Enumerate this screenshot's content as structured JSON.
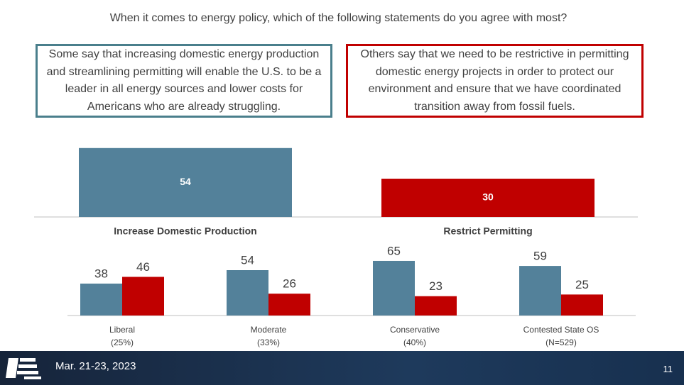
{
  "question": "When it comes to energy policy, which of the following statements do you agree with most?",
  "statements": [
    "Some say that increasing domestic energy production and streamlining permitting will enable the U.S. to be a leader in all energy sources and lower costs for Americans who are already struggling.",
    "Others say that we need to be restrictive in permitting domestic energy projects in order to protect our environment and ensure that we have coordinated transition away from fossil fuels."
  ],
  "chart_data": [
    {
      "type": "bar",
      "categories": [
        "Increase Domestic Production",
        "Restrict Permitting"
      ],
      "values": [
        54,
        30
      ],
      "colors": [
        "#53819a",
        "#c00000"
      ]
    },
    {
      "type": "grouped-bar",
      "categories": [
        "Liberal",
        "Moderate",
        "Conservative",
        "Contested State OS"
      ],
      "category_notes": [
        "(25%)",
        "(33%)",
        "(40%)",
        "(N=529)"
      ],
      "series": [
        {
          "color": "#53819a",
          "values": [
            38,
            54,
            65,
            59
          ]
        },
        {
          "color": "#c00000",
          "values": [
            46,
            26,
            23,
            25
          ]
        }
      ]
    }
  ],
  "footer": {
    "date": "Mar. 21-23, 2023",
    "page": "11"
  }
}
